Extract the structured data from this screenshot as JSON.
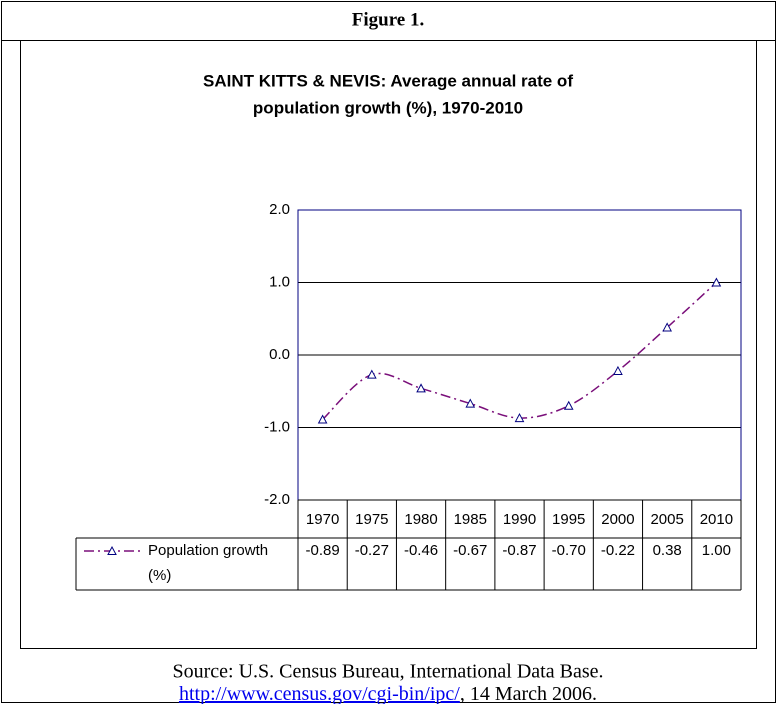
{
  "header": {
    "title": "Figure 1."
  },
  "chart_data": {
    "type": "line",
    "title": [
      "SAINT KITTS & NEVIS: Average annual rate of",
      "population growth (%), 1970-2010"
    ],
    "categories": [
      "1970",
      "1975",
      "1980",
      "1985",
      "1990",
      "1995",
      "2000",
      "2005",
      "2010"
    ],
    "series": [
      {
        "name": [
          "Population growth",
          "(%)"
        ],
        "color": "#7a0f7a",
        "values": [
          -0.89,
          -0.27,
          -0.46,
          -0.67,
          -0.87,
          -0.7,
          -0.22,
          0.38,
          1.0
        ],
        "value_labels": [
          "-0.89",
          "-0.27",
          "-0.46",
          "-0.67",
          "-0.87",
          "-0.70",
          "-0.22",
          "0.38",
          "1.00"
        ]
      }
    ],
    "ylim": [
      -2,
      2
    ],
    "yticks": [
      {
        "value": -2,
        "label": "-2.0"
      },
      {
        "value": -1,
        "label": "-1.0"
      },
      {
        "value": 0,
        "label": "0.0"
      },
      {
        "value": 1,
        "label": "1.0"
      },
      {
        "value": 2,
        "label": "2.0"
      }
    ],
    "grid": true,
    "smooth": true
  },
  "source": {
    "text": "Source: U.S. Census Bureau, International Data Base.",
    "link": "http://www.census.gov/cgi-bin/ipc/",
    "date": ", 14 March 2006."
  }
}
